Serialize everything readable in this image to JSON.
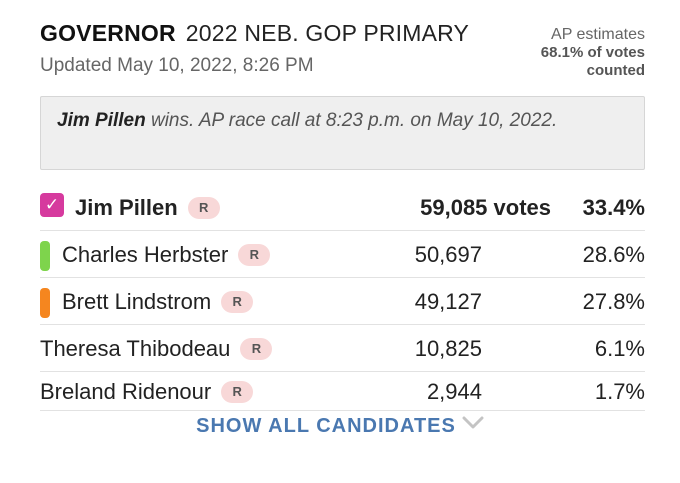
{
  "header": {
    "office": "GOVERNOR",
    "race": "2022 NEB. GOP PRIMARY",
    "updated": "Updated May 10, 2022, 8:26 PM",
    "ap_label": "AP estimates",
    "ap_pct": "68.1% of votes",
    "ap_counted": "counted"
  },
  "callout": {
    "winner": "Jim Pillen",
    "text": " wins. AP race call at 8:23 p.m. on May 10, 2022."
  },
  "candidates": [
    {
      "name": "Jim Pillen",
      "party": "R",
      "votes": "59,085 votes",
      "pct": "33.4%",
      "color": "#d63a9e"
    },
    {
      "name": "Charles Herbster",
      "party": "R",
      "votes": "50,697",
      "pct": "28.6%",
      "color": "#7ed44c"
    },
    {
      "name": "Brett Lindstrom",
      "party": "R",
      "votes": "49,127",
      "pct": "27.8%",
      "color": "#f5861f"
    },
    {
      "name": "Theresa Thibodeau",
      "party": "R",
      "votes": "10,825",
      "pct": "6.1%"
    },
    {
      "name": "Breland Ridenour",
      "party": "R",
      "votes": "2,944",
      "pct": "1.7%"
    }
  ],
  "show_all": {
    "label": "SHOW ALL CANDIDATES",
    "icon": "chevron-down-icon"
  }
}
